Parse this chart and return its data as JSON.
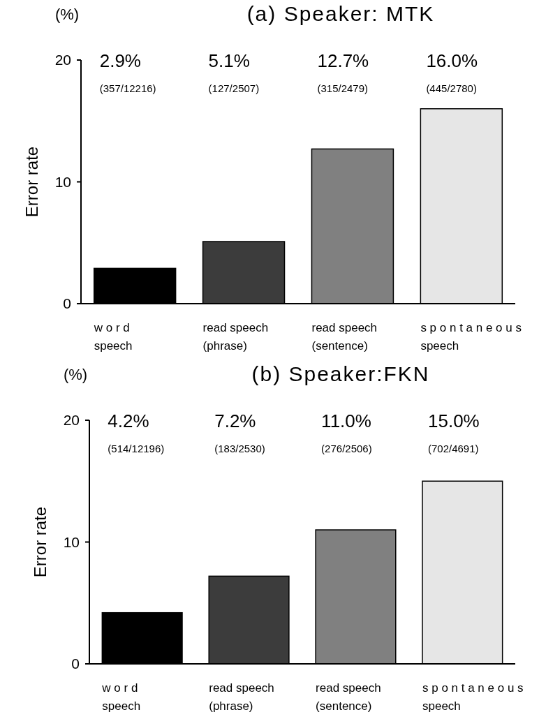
{
  "chart_data": [
    {
      "type": "bar",
      "title": "(a) Speaker: MTK",
      "ylabel": "Error rate",
      "annotations": [
        "(%)",
        "2.9%",
        "(357/12216)",
        "5.1%",
        "(127/2507)",
        "12.7%",
        "(315/2479)",
        "16.0%",
        "(445/2780)"
      ],
      "categories": [
        "w o r d\nspeech",
        "read  speech\n(phrase)",
        "read  speech\n(sentence)",
        "s p o n t a n e o u s\nspeech"
      ],
      "values": [
        2.9,
        5.1,
        12.7,
        16.0
      ],
      "colors": [
        "#000000",
        "#3c3c3c",
        "#808080",
        "#e6e6e6"
      ],
      "ylim": [
        0,
        20
      ],
      "yticks": [
        0,
        10,
        20
      ],
      "grid": false
    },
    {
      "type": "bar",
      "title": "(b) Speaker:FKN",
      "ylabel": "Error rate",
      "annotations": [
        "(%)",
        "4.2%",
        "(514/12196)",
        "7.2%",
        "(183/2530)",
        "11.0%",
        "(276/2506)",
        "15.0%",
        "(702/4691)"
      ],
      "categories": [
        "w o r d\nspeech",
        "read  speech\n(phrase)",
        "read  speech\n(sentence)",
        "s p o n t a n e o u s\nspeech"
      ],
      "values": [
        4.2,
        7.2,
        11.0,
        15.0
      ],
      "colors": [
        "#000000",
        "#3c3c3c",
        "#808080",
        "#e6e6e6"
      ],
      "ylim": [
        0,
        20
      ],
      "yticks": [
        0,
        10,
        20
      ],
      "grid": false
    }
  ]
}
